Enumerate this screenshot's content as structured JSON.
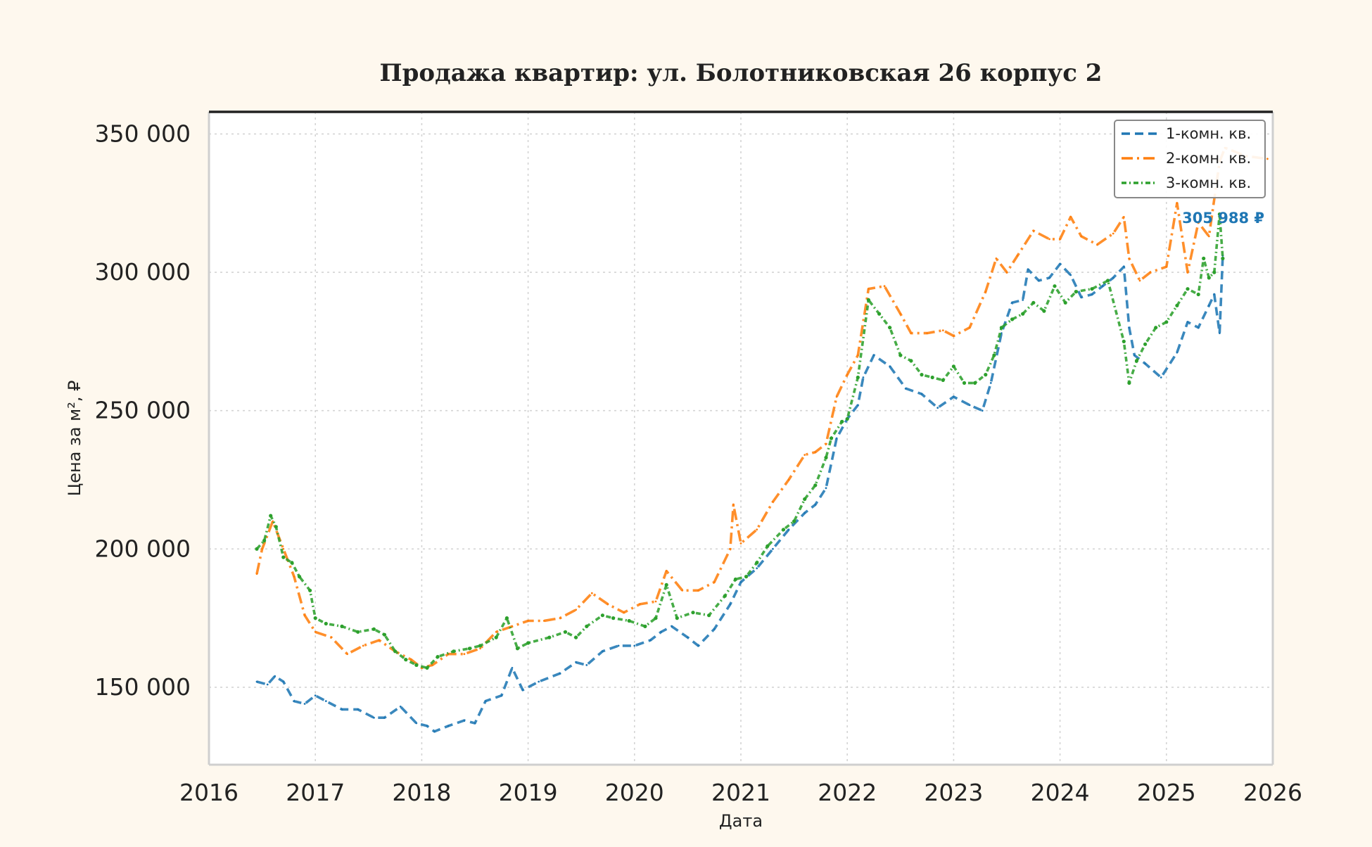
{
  "chart_data": {
    "type": "line",
    "title": "Продажа квартир: ул. Болотниковская 26 корпус 2",
    "xlabel": "Дата",
    "ylabel": "Цена за м², ₽",
    "xlim": [
      2016.0,
      2026.0
    ],
    "ylim": [
      122000,
      358000
    ],
    "x_ticks": [
      2016,
      2017,
      2018,
      2019,
      2020,
      2021,
      2022,
      2023,
      2024,
      2025,
      2026
    ],
    "x_tick_labels": [
      "2016",
      "2017",
      "2018",
      "2019",
      "2020",
      "2021",
      "2022",
      "2023",
      "2024",
      "2025",
      "2026"
    ],
    "y_ticks": [
      150000,
      200000,
      250000,
      300000,
      350000
    ],
    "y_tick_labels": [
      "150 000",
      "200 000",
      "250 000",
      "300 000",
      "350 000"
    ],
    "grid": true,
    "legend_position": "top-right",
    "last_value_label": "305 988 ₽",
    "series": [
      {
        "name": "1-комн. кв.",
        "color": "#1f77b4",
        "style": "dashed",
        "x": [
          2016.45,
          2016.55,
          2016.62,
          2016.7,
          2016.8,
          2016.9,
          2017.0,
          2017.1,
          2017.25,
          2017.4,
          2017.55,
          2017.65,
          2017.8,
          2017.95,
          2018.05,
          2018.12,
          2018.25,
          2018.4,
          2018.5,
          2018.6,
          2018.75,
          2018.85,
          2018.95,
          2019.1,
          2019.3,
          2019.45,
          2019.55,
          2019.7,
          2019.85,
          2020.0,
          2020.15,
          2020.25,
          2020.35,
          2020.5,
          2020.6,
          2020.75,
          2020.9,
          2021.0,
          2021.15,
          2021.3,
          2021.45,
          2021.6,
          2021.7,
          2021.8,
          2021.9,
          2022.0,
          2022.1,
          2022.15,
          2022.25,
          2022.4,
          2022.55,
          2022.7,
          2022.85,
          2023.0,
          2023.15,
          2023.27,
          2023.35,
          2023.45,
          2023.55,
          2023.65,
          2023.7,
          2023.8,
          2023.9,
          2024.0,
          2024.1,
          2024.2,
          2024.3,
          2024.4,
          2024.5,
          2024.6,
          2024.65,
          2024.7,
          2024.8,
          2024.95,
          2025.1,
          2025.2,
          2025.3,
          2025.4,
          2025.45,
          2025.5,
          2025.53
        ],
        "values": [
          152000,
          151000,
          154000,
          152000,
          145000,
          144000,
          147000,
          145000,
          142000,
          142000,
          139000,
          139000,
          143000,
          137000,
          136000,
          134000,
          136000,
          138000,
          137000,
          145000,
          147000,
          157000,
          149000,
          152000,
          155000,
          159000,
          158000,
          163000,
          165000,
          165000,
          167000,
          170000,
          172000,
          168000,
          165000,
          171000,
          180000,
          188000,
          193000,
          200000,
          207000,
          213000,
          216000,
          222000,
          240000,
          247000,
          252000,
          262000,
          270000,
          266000,
          258000,
          256000,
          251000,
          255000,
          252000,
          250000,
          260000,
          278000,
          289000,
          290000,
          301000,
          297000,
          298000,
          303000,
          299000,
          291000,
          292000,
          295000,
          298000,
          302000,
          280000,
          270000,
          267000,
          262000,
          271000,
          282000,
          280000,
          288000,
          292000,
          278000,
          305988
        ]
      },
      {
        "name": "2-комн. кв.",
        "color": "#ff7f0e",
        "style": "dashdot",
        "x": [
          2016.45,
          2016.5,
          2016.6,
          2016.7,
          2016.8,
          2016.9,
          2017.0,
          2017.15,
          2017.3,
          2017.45,
          2017.6,
          2017.75,
          2017.9,
          2018.0,
          2018.1,
          2018.25,
          2018.4,
          2018.55,
          2018.7,
          2018.85,
          2019.0,
          2019.15,
          2019.3,
          2019.45,
          2019.6,
          2019.75,
          2019.9,
          2020.05,
          2020.2,
          2020.3,
          2020.45,
          2020.6,
          2020.75,
          2020.9,
          2020.93,
          2021.0,
          2021.15,
          2021.3,
          2021.45,
          2021.6,
          2021.7,
          2021.8,
          2021.9,
          2022.0,
          2022.1,
          2022.2,
          2022.35,
          2022.5,
          2022.6,
          2022.75,
          2022.9,
          2023.0,
          2023.15,
          2023.3,
          2023.4,
          2023.5,
          2023.6,
          2023.75,
          2023.9,
          2024.0,
          2024.1,
          2024.2,
          2024.35,
          2024.5,
          2024.6,
          2024.65,
          2024.75,
          2024.85,
          2025.0,
          2025.1,
          2025.2,
          2025.3,
          2025.4,
          2025.5,
          2025.55,
          2025.75,
          2025.95
        ],
        "values": [
          191000,
          200000,
          210000,
          200000,
          190000,
          176000,
          170000,
          168000,
          162000,
          165000,
          167000,
          163000,
          160000,
          157000,
          158000,
          162000,
          162000,
          164000,
          170000,
          172000,
          174000,
          174000,
          175000,
          178000,
          184000,
          180000,
          177000,
          180000,
          181000,
          192000,
          185000,
          185000,
          188000,
          200000,
          216000,
          202000,
          207000,
          217000,
          225000,
          234000,
          235000,
          238000,
          255000,
          263000,
          270000,
          294000,
          295000,
          285000,
          278000,
          278000,
          279000,
          277000,
          280000,
          293000,
          305000,
          300000,
          306000,
          315000,
          312000,
          312000,
          320000,
          313000,
          310000,
          314000,
          320000,
          305000,
          297000,
          300000,
          302000,
          325000,
          300000,
          318000,
          313000,
          340000,
          345000,
          342000,
          341000
        ]
      },
      {
        "name": "3-комн. кв.",
        "color": "#2ca02c",
        "style": "dotdash-markers",
        "x": [
          2016.45,
          2016.52,
          2016.58,
          2016.63,
          2016.7,
          2016.78,
          2016.85,
          2016.95,
          2017.0,
          2017.1,
          2017.25,
          2017.4,
          2017.55,
          2017.65,
          2017.75,
          2017.85,
          2017.95,
          2018.05,
          2018.15,
          2018.3,
          2018.45,
          2018.55,
          2018.7,
          2018.8,
          2018.9,
          2019.0,
          2019.2,
          2019.35,
          2019.45,
          2019.55,
          2019.7,
          2019.8,
          2019.95,
          2020.1,
          2020.2,
          2020.3,
          2020.4,
          2020.55,
          2020.7,
          2020.85,
          2020.95,
          2021.05,
          2021.15,
          2021.25,
          2021.4,
          2021.5,
          2021.6,
          2021.7,
          2021.8,
          2021.85,
          2021.95,
          2022.0,
          2022.1,
          2022.2,
          2022.3,
          2022.4,
          2022.5,
          2022.6,
          2022.7,
          2022.8,
          2022.9,
          2023.0,
          2023.1,
          2023.2,
          2023.3,
          2023.38,
          2023.45,
          2023.55,
          2023.65,
          2023.75,
          2023.85,
          2023.95,
          2024.05,
          2024.15,
          2024.3,
          2024.45,
          2024.6,
          2024.65,
          2024.72,
          2024.8,
          2024.9,
          2025.0,
          2025.1,
          2025.2,
          2025.3,
          2025.35,
          2025.4,
          2025.45,
          2025.5,
          2025.53
        ],
        "values": [
          200000,
          203000,
          212000,
          208000,
          197000,
          195000,
          190000,
          185000,
          175000,
          173000,
          172000,
          170000,
          171000,
          169000,
          163000,
          160000,
          158000,
          157000,
          161000,
          163000,
          164000,
          165000,
          168000,
          175000,
          164000,
          166000,
          168000,
          170000,
          168000,
          172000,
          176000,
          175000,
          174000,
          172000,
          175000,
          187000,
          175000,
          177000,
          176000,
          183000,
          189000,
          190000,
          195000,
          201000,
          207000,
          210000,
          218000,
          223000,
          233000,
          240000,
          246000,
          247000,
          262000,
          290000,
          285000,
          280000,
          270000,
          268000,
          263000,
          262000,
          261000,
          266000,
          260000,
          260000,
          263000,
          270000,
          280000,
          283000,
          285000,
          289000,
          286000,
          295000,
          289000,
          293000,
          294000,
          297000,
          275000,
          260000,
          268000,
          274000,
          280000,
          282000,
          288000,
          294000,
          292000,
          305000,
          298000,
          300000,
          321000,
          305000
        ]
      }
    ]
  }
}
